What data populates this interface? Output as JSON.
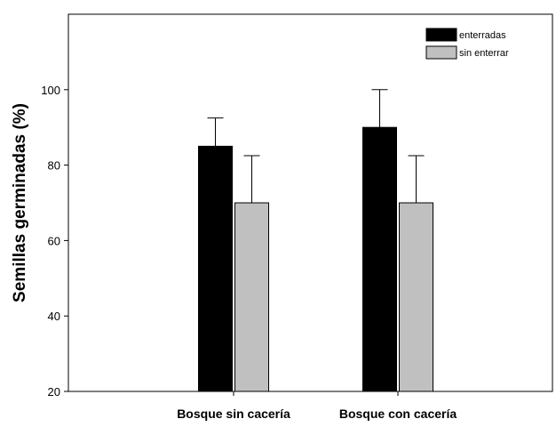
{
  "chart_data": {
    "type": "bar",
    "title": "",
    "xlabel": "",
    "ylabel": "Semillas germinadas (%)",
    "categories": [
      "Bosque sin cacería",
      "Bosque con cacería"
    ],
    "series": [
      {
        "name": "enterradas",
        "values": [
          85,
          90
        ],
        "errors": [
          7.5,
          10
        ],
        "color": "#000000"
      },
      {
        "name": "sin enterrar",
        "values": [
          70,
          70
        ],
        "errors": [
          12.5,
          12.5
        ],
        "color": "#c0c0c0"
      }
    ],
    "ylim": [
      20,
      120
    ],
    "yticks": [
      20,
      40,
      60,
      80,
      100
    ],
    "grid": false,
    "legend_position": "top-right",
    "error_bars": "upper only"
  }
}
